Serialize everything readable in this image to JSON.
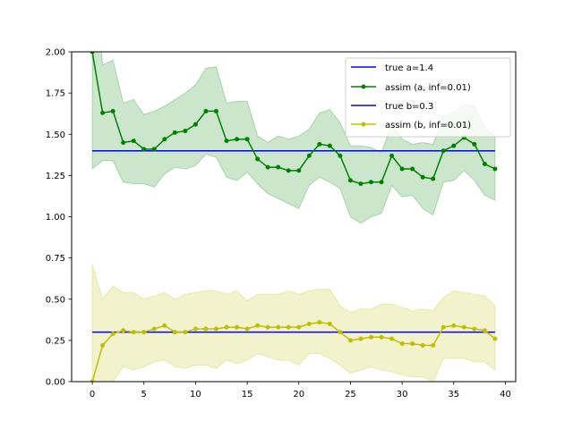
{
  "chart_data": {
    "type": "line",
    "title": "",
    "xlabel": "",
    "ylabel": "",
    "xlim": [
      -2,
      41
    ],
    "ylim": [
      0,
      2
    ],
    "grid": false,
    "legend_position": "top-right",
    "x_ticks": [
      0,
      5,
      10,
      15,
      20,
      25,
      30,
      35,
      40
    ],
    "x_tick_labels": [
      "0",
      "5",
      "10",
      "15",
      "20",
      "25",
      "30",
      "35",
      "40"
    ],
    "y_ticks": [
      0,
      0.25,
      0.5,
      0.75,
      1.0,
      1.25,
      1.5,
      1.75,
      2.0
    ],
    "y_tick_labels": [
      "0.00",
      "0.25",
      "0.50",
      "0.75",
      "1.00",
      "1.25",
      "1.50",
      "1.75",
      "2.00"
    ],
    "x": [
      0,
      1,
      2,
      3,
      4,
      5,
      6,
      7,
      8,
      9,
      10,
      11,
      12,
      13,
      14,
      15,
      16,
      17,
      18,
      19,
      20,
      21,
      22,
      23,
      24,
      25,
      26,
      27,
      28,
      29,
      30,
      31,
      32,
      33,
      34,
      35,
      36,
      37,
      38,
      39
    ],
    "series": [
      {
        "name": "true a=1.4",
        "kind": "hline",
        "value": 1.4,
        "x_range": [
          0,
          39
        ],
        "color": "#0000ff"
      },
      {
        "name": "assim (a, inf=0.01)",
        "kind": "line-marker",
        "color": "#008000",
        "band_color": "#008000",
        "values": [
          2.0,
          1.63,
          1.64,
          1.45,
          1.46,
          1.41,
          1.41,
          1.47,
          1.51,
          1.52,
          1.56,
          1.64,
          1.64,
          1.46,
          1.47,
          1.47,
          1.35,
          1.3,
          1.3,
          1.28,
          1.28,
          1.37,
          1.44,
          1.43,
          1.37,
          1.22,
          1.2,
          1.21,
          1.21,
          1.37,
          1.29,
          1.29,
          1.24,
          1.23,
          1.4,
          1.43,
          1.48,
          1.44,
          1.32,
          1.29
        ],
        "band_upper": [
          2.71,
          1.92,
          1.95,
          1.69,
          1.71,
          1.62,
          1.64,
          1.67,
          1.71,
          1.75,
          1.8,
          1.9,
          1.91,
          1.69,
          1.7,
          1.7,
          1.49,
          1.45,
          1.49,
          1.47,
          1.49,
          1.53,
          1.63,
          1.65,
          1.57,
          1.43,
          1.43,
          1.42,
          1.39,
          1.56,
          1.47,
          1.44,
          1.45,
          1.44,
          1.61,
          1.63,
          1.68,
          1.67,
          1.54,
          1.49
        ],
        "band_lower": [
          1.29,
          1.34,
          1.34,
          1.21,
          1.2,
          1.2,
          1.18,
          1.26,
          1.3,
          1.29,
          1.31,
          1.38,
          1.36,
          1.24,
          1.22,
          1.27,
          1.2,
          1.14,
          1.11,
          1.08,
          1.05,
          1.19,
          1.24,
          1.21,
          1.17,
          1.0,
          0.96,
          1.0,
          1.02,
          1.19,
          1.12,
          1.13,
          1.05,
          1.01,
          1.21,
          1.22,
          1.28,
          1.22,
          1.13,
          1.1
        ]
      },
      {
        "name": "true b=0.3",
        "kind": "hline",
        "value": 0.3,
        "x_range": [
          0,
          39
        ],
        "color": "#0000ff"
      },
      {
        "name": "assim (b, inf=0.01)",
        "kind": "line-marker",
        "color": "#bfbf00",
        "band_color": "#bfbf00",
        "values": [
          0.0,
          0.22,
          0.29,
          0.31,
          0.3,
          0.3,
          0.32,
          0.34,
          0.3,
          0.3,
          0.32,
          0.32,
          0.32,
          0.33,
          0.33,
          0.32,
          0.34,
          0.33,
          0.33,
          0.33,
          0.33,
          0.35,
          0.36,
          0.35,
          0.3,
          0.25,
          0.26,
          0.27,
          0.27,
          0.26,
          0.23,
          0.23,
          0.22,
          0.22,
          0.33,
          0.34,
          0.33,
          0.32,
          0.31,
          0.26
        ],
        "band_upper": [
          0.71,
          0.5,
          0.58,
          0.54,
          0.54,
          0.5,
          0.52,
          0.54,
          0.5,
          0.53,
          0.54,
          0.55,
          0.55,
          0.53,
          0.55,
          0.49,
          0.53,
          0.53,
          0.53,
          0.55,
          0.53,
          0.55,
          0.56,
          0.56,
          0.46,
          0.42,
          0.44,
          0.44,
          0.47,
          0.47,
          0.45,
          0.43,
          0.44,
          0.43,
          0.51,
          0.55,
          0.54,
          0.53,
          0.52,
          0.46
        ],
        "band_lower": [
          0.0,
          0.0,
          0.0,
          0.09,
          0.07,
          0.09,
          0.12,
          0.13,
          0.09,
          0.08,
          0.1,
          0.1,
          0.08,
          0.13,
          0.11,
          0.13,
          0.17,
          0.15,
          0.13,
          0.13,
          0.1,
          0.17,
          0.17,
          0.14,
          0.1,
          0.05,
          0.07,
          0.09,
          0.07,
          0.06,
          0.04,
          0.03,
          0.03,
          0.0,
          0.14,
          0.14,
          0.14,
          0.12,
          0.12,
          0.07
        ]
      }
    ]
  },
  "legend": {
    "items": [
      "true a=1.4",
      "assim (a, inf=0.01)",
      "true b=0.3",
      "assim (b, inf=0.01)"
    ]
  }
}
